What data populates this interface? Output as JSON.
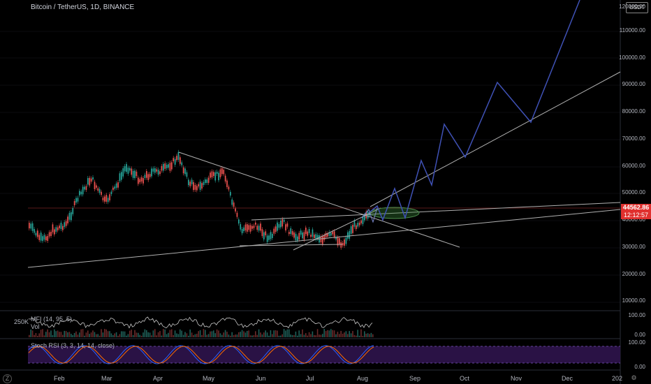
{
  "header": {
    "title": "Bitcoin / TetherUS, 1D, BINANCE",
    "currency_button": "USDT"
  },
  "price_axis": {
    "top_label": "120000.00",
    "labels": [
      "110000.00",
      "100000.00",
      "90000.00",
      "80000.00",
      "70000.00",
      "60000.00",
      "50000.00",
      "40000.00",
      "30000.00",
      "20000.00",
      "10000.00"
    ],
    "current_price": "44562.86",
    "countdown": "12:12:57",
    "accent": "#e0302e"
  },
  "time_axis": {
    "labels": [
      "Feb",
      "Mar",
      "Apr",
      "May",
      "Jun",
      "Jul",
      "Aug",
      "Sep",
      "Oct",
      "Nov",
      "Dec",
      "202"
    ]
  },
  "mfi_panel": {
    "label": "MFI (14, 95, 5)",
    "volume_label": "Vol",
    "left_value": "250K",
    "axis": [
      "100.00",
      "0.00"
    ]
  },
  "stoch_panel": {
    "label": "Stoch RSI (3, 3, 14, 14, close)",
    "axis": [
      "100.00",
      "0.00"
    ]
  },
  "corner_icons": {
    "left": "Z",
    "right": "gear-icon"
  },
  "colors": {
    "up": "#26a69a",
    "down": "#ef5350",
    "projection": "#3f51b5",
    "trendline": "#b0b0b0",
    "stoch_band": "#2a1245"
  }
}
